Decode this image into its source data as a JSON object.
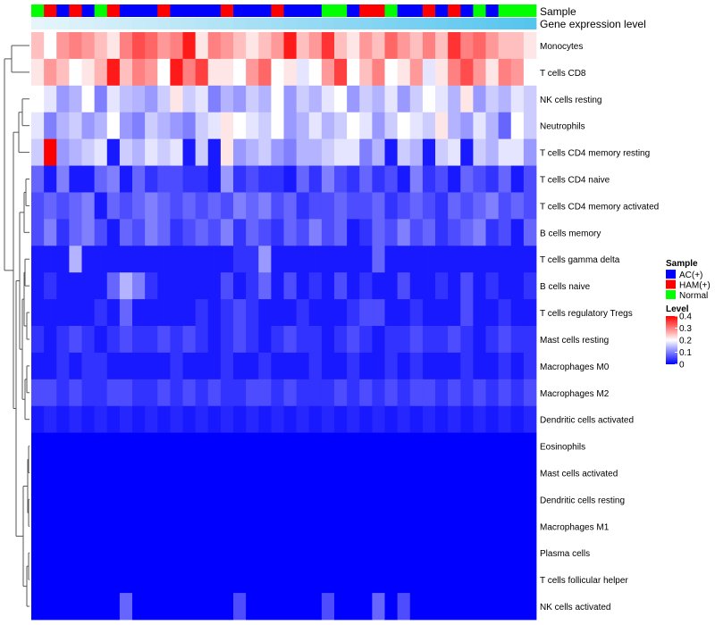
{
  "chart_data": {
    "type": "heatmap",
    "title": "",
    "annotation_tracks": [
      {
        "name": "Sample"
      },
      {
        "name": "Gene expression level"
      }
    ],
    "sample_groups": [
      "N",
      "H",
      "A",
      "H",
      "A",
      "N",
      "H",
      "A",
      "A",
      "A",
      "H",
      "A",
      "A",
      "A",
      "A",
      "H",
      "A",
      "A",
      "A",
      "H",
      "A",
      "A",
      "A",
      "N",
      "N",
      "A",
      "H",
      "H",
      "N",
      "A",
      "A",
      "H",
      "A",
      "H",
      "A",
      "N",
      "A",
      "N",
      "N",
      "N"
    ],
    "rows": [
      "Monocytes",
      "T cells CD8",
      "NK cells resting",
      "Neutrophils",
      "T cells CD4 memory resting",
      "T cells CD4 naive",
      "T cells CD4 memory activated",
      "B cells memory",
      "T cells gamma delta",
      "B cells naive",
      "T cells regulatory  Tregs",
      "Mast cells resting",
      "Macrophages M0",
      "Macrophages M2",
      "Dendritic cells activated",
      "Eosinophils",
      "Mast cells activated",
      "Dendritic cells resting",
      "Macrophages M1",
      "Plasma cells",
      "T cells follicular helper",
      "NK cells activated"
    ],
    "matrix": [
      [
        0.25,
        0.2,
        0.28,
        0.3,
        0.28,
        0.25,
        0.22,
        0.3,
        0.34,
        0.32,
        0.28,
        0.3,
        0.38,
        0.22,
        0.3,
        0.28,
        0.25,
        0.22,
        0.25,
        0.28,
        0.38,
        0.25,
        0.28,
        0.36,
        0.25,
        0.22,
        0.28,
        0.25,
        0.32,
        0.28,
        0.25,
        0.3,
        0.25,
        0.36,
        0.3,
        0.32,
        0.28,
        0.25,
        0.25,
        0.22
      ],
      [
        0.22,
        0.28,
        0.25,
        0.2,
        0.22,
        0.26,
        0.38,
        0.25,
        0.3,
        0.28,
        0.2,
        0.38,
        0.3,
        0.35,
        0.22,
        0.22,
        0.2,
        0.28,
        0.32,
        0.2,
        0.22,
        0.18,
        0.2,
        0.28,
        0.35,
        0.2,
        0.25,
        0.3,
        0.2,
        0.22,
        0.28,
        0.18,
        0.22,
        0.3,
        0.34,
        0.28,
        0.22,
        0.3,
        0.28,
        0.2
      ],
      [
        0.2,
        0.18,
        0.12,
        0.14,
        0.2,
        0.1,
        0.18,
        0.15,
        0.14,
        0.12,
        0.16,
        0.22,
        0.16,
        0.18,
        0.1,
        0.14,
        0.12,
        0.16,
        0.14,
        0.2,
        0.12,
        0.16,
        0.14,
        0.18,
        0.2,
        0.12,
        0.16,
        0.14,
        0.18,
        0.12,
        0.16,
        0.2,
        0.18,
        0.14,
        0.22,
        0.12,
        0.16,
        0.14,
        0.18,
        0.16
      ],
      [
        0.18,
        0.1,
        0.14,
        0.16,
        0.12,
        0.14,
        0.2,
        0.12,
        0.1,
        0.16,
        0.14,
        0.12,
        0.1,
        0.16,
        0.18,
        0.22,
        0.2,
        0.18,
        0.16,
        0.2,
        0.12,
        0.14,
        0.18,
        0.14,
        0.16,
        0.2,
        0.18,
        0.12,
        0.16,
        0.2,
        0.18,
        0.16,
        0.22,
        0.14,
        0.12,
        0.18,
        0.14,
        0.08,
        0.2,
        0.16
      ],
      [
        0.16,
        0.4,
        0.12,
        0.14,
        0.16,
        0.18,
        0.02,
        0.16,
        0.14,
        0.18,
        0.16,
        0.18,
        0.02,
        0.16,
        0.02,
        0.22,
        0.12,
        0.14,
        0.16,
        0.12,
        0.1,
        0.14,
        0.14,
        0.16,
        0.18,
        0.18,
        0.1,
        0.14,
        0.02,
        0.16,
        0.14,
        0.02,
        0.16,
        0.18,
        0.02,
        0.16,
        0.14,
        0.18,
        0.18,
        0.12
      ],
      [
        0.08,
        0.02,
        0.1,
        0.02,
        0.02,
        0.08,
        0.1,
        0.02,
        0.08,
        0.04,
        0.06,
        0.06,
        0.04,
        0.04,
        0.02,
        0.12,
        0.04,
        0.06,
        0.04,
        0.04,
        0.02,
        0.08,
        0.04,
        0.1,
        0.06,
        0.04,
        0.08,
        0.04,
        0.06,
        0.02,
        0.1,
        0.04,
        0.06,
        0.02,
        0.08,
        0.06,
        0.04,
        0.08,
        0.02,
        0.06
      ],
      [
        0.06,
        0.08,
        0.06,
        0.08,
        0.1,
        0.02,
        0.08,
        0.06,
        0.08,
        0.1,
        0.08,
        0.06,
        0.08,
        0.06,
        0.08,
        0.06,
        0.1,
        0.08,
        0.1,
        0.06,
        0.08,
        0.04,
        0.06,
        0.06,
        0.08,
        0.06,
        0.06,
        0.08,
        0.04,
        0.06,
        0.08,
        0.06,
        0.04,
        0.08,
        0.06,
        0.08,
        0.1,
        0.06,
        0.08,
        0.06
      ],
      [
        0.06,
        0.1,
        0.04,
        0.08,
        0.1,
        0.06,
        0.02,
        0.08,
        0.06,
        0.1,
        0.08,
        0.04,
        0.06,
        0.08,
        0.06,
        0.1,
        0.04,
        0.08,
        0.06,
        0.04,
        0.08,
        0.06,
        0.1,
        0.06,
        0.08,
        0.02,
        0.04,
        0.08,
        0.06,
        0.1,
        0.06,
        0.08,
        0.04,
        0.06,
        0.08,
        0.1,
        0.04,
        0.06,
        0.02,
        0.08
      ],
      [
        0.02,
        0.02,
        0.02,
        0.14,
        0.02,
        0.02,
        0.02,
        0.02,
        0.02,
        0.02,
        0.02,
        0.02,
        0.02,
        0.02,
        0.02,
        0.02,
        0.04,
        0.04,
        0.12,
        0.02,
        0.02,
        0.02,
        0.02,
        0.02,
        0.02,
        0.02,
        0.02,
        0.08,
        0.02,
        0.02,
        0.02,
        0.02,
        0.02,
        0.02,
        0.02,
        0.02,
        0.02,
        0.02,
        0.02,
        0.02
      ],
      [
        0.02,
        0.04,
        0.02,
        0.02,
        0.02,
        0.02,
        0.08,
        0.14,
        0.1,
        0.04,
        0.02,
        0.02,
        0.02,
        0.02,
        0.02,
        0.06,
        0.02,
        0.04,
        0.08,
        0.02,
        0.06,
        0.02,
        0.04,
        0.02,
        0.06,
        0.02,
        0.04,
        0.02,
        0.02,
        0.06,
        0.02,
        0.02,
        0.04,
        0.02,
        0.06,
        0.02,
        0.04,
        0.02,
        0.02,
        0.04
      ],
      [
        0.02,
        0.02,
        0.02,
        0.02,
        0.02,
        0.04,
        0.02,
        0.08,
        0.02,
        0.02,
        0.02,
        0.02,
        0.02,
        0.04,
        0.02,
        0.04,
        0.06,
        0.04,
        0.02,
        0.02,
        0.02,
        0.04,
        0.02,
        0.02,
        0.02,
        0.04,
        0.06,
        0.06,
        0.02,
        0.02,
        0.04,
        0.02,
        0.02,
        0.02,
        0.06,
        0.02,
        0.02,
        0.04,
        0.02,
        0.02
      ],
      [
        0.04,
        0.02,
        0.04,
        0.06,
        0.04,
        0.02,
        0.04,
        0.06,
        0.04,
        0.04,
        0.06,
        0.04,
        0.06,
        0.04,
        0.02,
        0.04,
        0.06,
        0.04,
        0.02,
        0.04,
        0.06,
        0.04,
        0.04,
        0.02,
        0.04,
        0.06,
        0.04,
        0.02,
        0.04,
        0.04,
        0.06,
        0.04,
        0.04,
        0.06,
        0.04,
        0.02,
        0.04,
        0.06,
        0.04,
        0.04
      ],
      [
        0.02,
        0.02,
        0.04,
        0.02,
        0.04,
        0.04,
        0.02,
        0.02,
        0.02,
        0.02,
        0.02,
        0.04,
        0.02,
        0.02,
        0.02,
        0.04,
        0.02,
        0.02,
        0.04,
        0.02,
        0.02,
        0.02,
        0.04,
        0.02,
        0.02,
        0.04,
        0.02,
        0.02,
        0.04,
        0.02,
        0.04,
        0.02,
        0.02,
        0.02,
        0.04,
        0.02,
        0.02,
        0.04,
        0.02,
        0.04
      ],
      [
        0.06,
        0.06,
        0.04,
        0.06,
        0.04,
        0.04,
        0.06,
        0.06,
        0.04,
        0.04,
        0.06,
        0.04,
        0.06,
        0.04,
        0.06,
        0.04,
        0.04,
        0.06,
        0.06,
        0.04,
        0.06,
        0.04,
        0.04,
        0.04,
        0.06,
        0.04,
        0.06,
        0.04,
        0.06,
        0.04,
        0.06,
        0.06,
        0.04,
        0.06,
        0.04,
        0.06,
        0.04,
        0.06,
        0.04,
        0.06
      ],
      [
        0.02,
        0.03,
        0.02,
        0.03,
        0.02,
        0.03,
        0.02,
        0.03,
        0.02,
        0.03,
        0.02,
        0.03,
        0.02,
        0.03,
        0.02,
        0.03,
        0.02,
        0.03,
        0.02,
        0.03,
        0.02,
        0.03,
        0.02,
        0.03,
        0.02,
        0.03,
        0.02,
        0.03,
        0.02,
        0.03,
        0.02,
        0.03,
        0.02,
        0.03,
        0.02,
        0.03,
        0.02,
        0.03,
        0.02,
        0.03
      ],
      [
        0,
        0,
        0,
        0,
        0,
        0,
        0,
        0,
        0,
        0,
        0,
        0,
        0,
        0,
        0,
        0,
        0,
        0,
        0,
        0,
        0,
        0,
        0,
        0,
        0,
        0,
        0,
        0,
        0,
        0,
        0,
        0,
        0,
        0,
        0,
        0,
        0,
        0,
        0,
        0
      ],
      [
        0,
        0,
        0,
        0,
        0,
        0,
        0,
        0,
        0,
        0,
        0,
        0,
        0,
        0,
        0,
        0,
        0,
        0,
        0,
        0,
        0,
        0,
        0,
        0,
        0,
        0,
        0,
        0,
        0,
        0,
        0,
        0,
        0,
        0,
        0,
        0,
        0,
        0,
        0,
        0
      ],
      [
        0,
        0,
        0,
        0,
        0,
        0,
        0,
        0,
        0,
        0,
        0,
        0,
        0,
        0,
        0,
        0,
        0,
        0,
        0,
        0,
        0,
        0,
        0,
        0,
        0,
        0,
        0,
        0,
        0,
        0,
        0,
        0,
        0,
        0,
        0,
        0,
        0,
        0,
        0,
        0
      ],
      [
        0,
        0,
        0,
        0,
        0,
        0,
        0,
        0,
        0,
        0,
        0,
        0,
        0,
        0,
        0,
        0,
        0,
        0,
        0,
        0,
        0,
        0,
        0,
        0,
        0,
        0,
        0,
        0,
        0,
        0,
        0,
        0,
        0,
        0,
        0,
        0,
        0,
        0,
        0,
        0
      ],
      [
        0,
        0,
        0,
        0,
        0,
        0,
        0,
        0,
        0,
        0,
        0,
        0,
        0,
        0,
        0,
        0,
        0,
        0,
        0,
        0,
        0,
        0,
        0,
        0,
        0,
        0,
        0,
        0,
        0,
        0,
        0,
        0,
        0,
        0,
        0,
        0,
        0,
        0,
        0,
        0
      ],
      [
        0,
        0,
        0,
        0,
        0,
        0,
        0,
        0,
        0,
        0,
        0,
        0,
        0,
        0,
        0,
        0,
        0,
        0,
        0,
        0,
        0,
        0,
        0,
        0,
        0,
        0,
        0,
        0,
        0,
        0,
        0,
        0,
        0,
        0,
        0,
        0,
        0,
        0,
        0,
        0
      ],
      [
        0,
        0,
        0,
        0,
        0,
        0,
        0,
        0.08,
        0,
        0,
        0,
        0,
        0,
        0,
        0,
        0,
        0.06,
        0,
        0,
        0,
        0,
        0,
        0,
        0.06,
        0,
        0,
        0,
        0.08,
        0,
        0.06,
        0,
        0,
        0,
        0,
        0,
        0,
        0,
        0,
        0,
        0
      ]
    ],
    "legend_sample": {
      "title": "Sample",
      "entries": [
        {
          "code": "A",
          "label": "AC(+)",
          "color": "#0000ff"
        },
        {
          "code": "H",
          "label": "HAM(+)",
          "color": "#ff0000"
        },
        {
          "code": "N",
          "label": "Normal",
          "color": "#00ff00"
        }
      ]
    },
    "legend_level": {
      "title": "Level",
      "ticks": [
        0.4,
        0.3,
        0.2,
        0.1,
        0
      ],
      "tick_labels": [
        "0.4",
        "0.3",
        "0.2",
        "0.1",
        "0"
      ],
      "range": [
        0,
        0.4
      ],
      "low_color": "#0000ff",
      "mid_color": "#ffffff",
      "high_color": "#ff0000"
    },
    "expression_track_colors": [
      "#e6f5fb",
      "#56c5ee"
    ]
  }
}
